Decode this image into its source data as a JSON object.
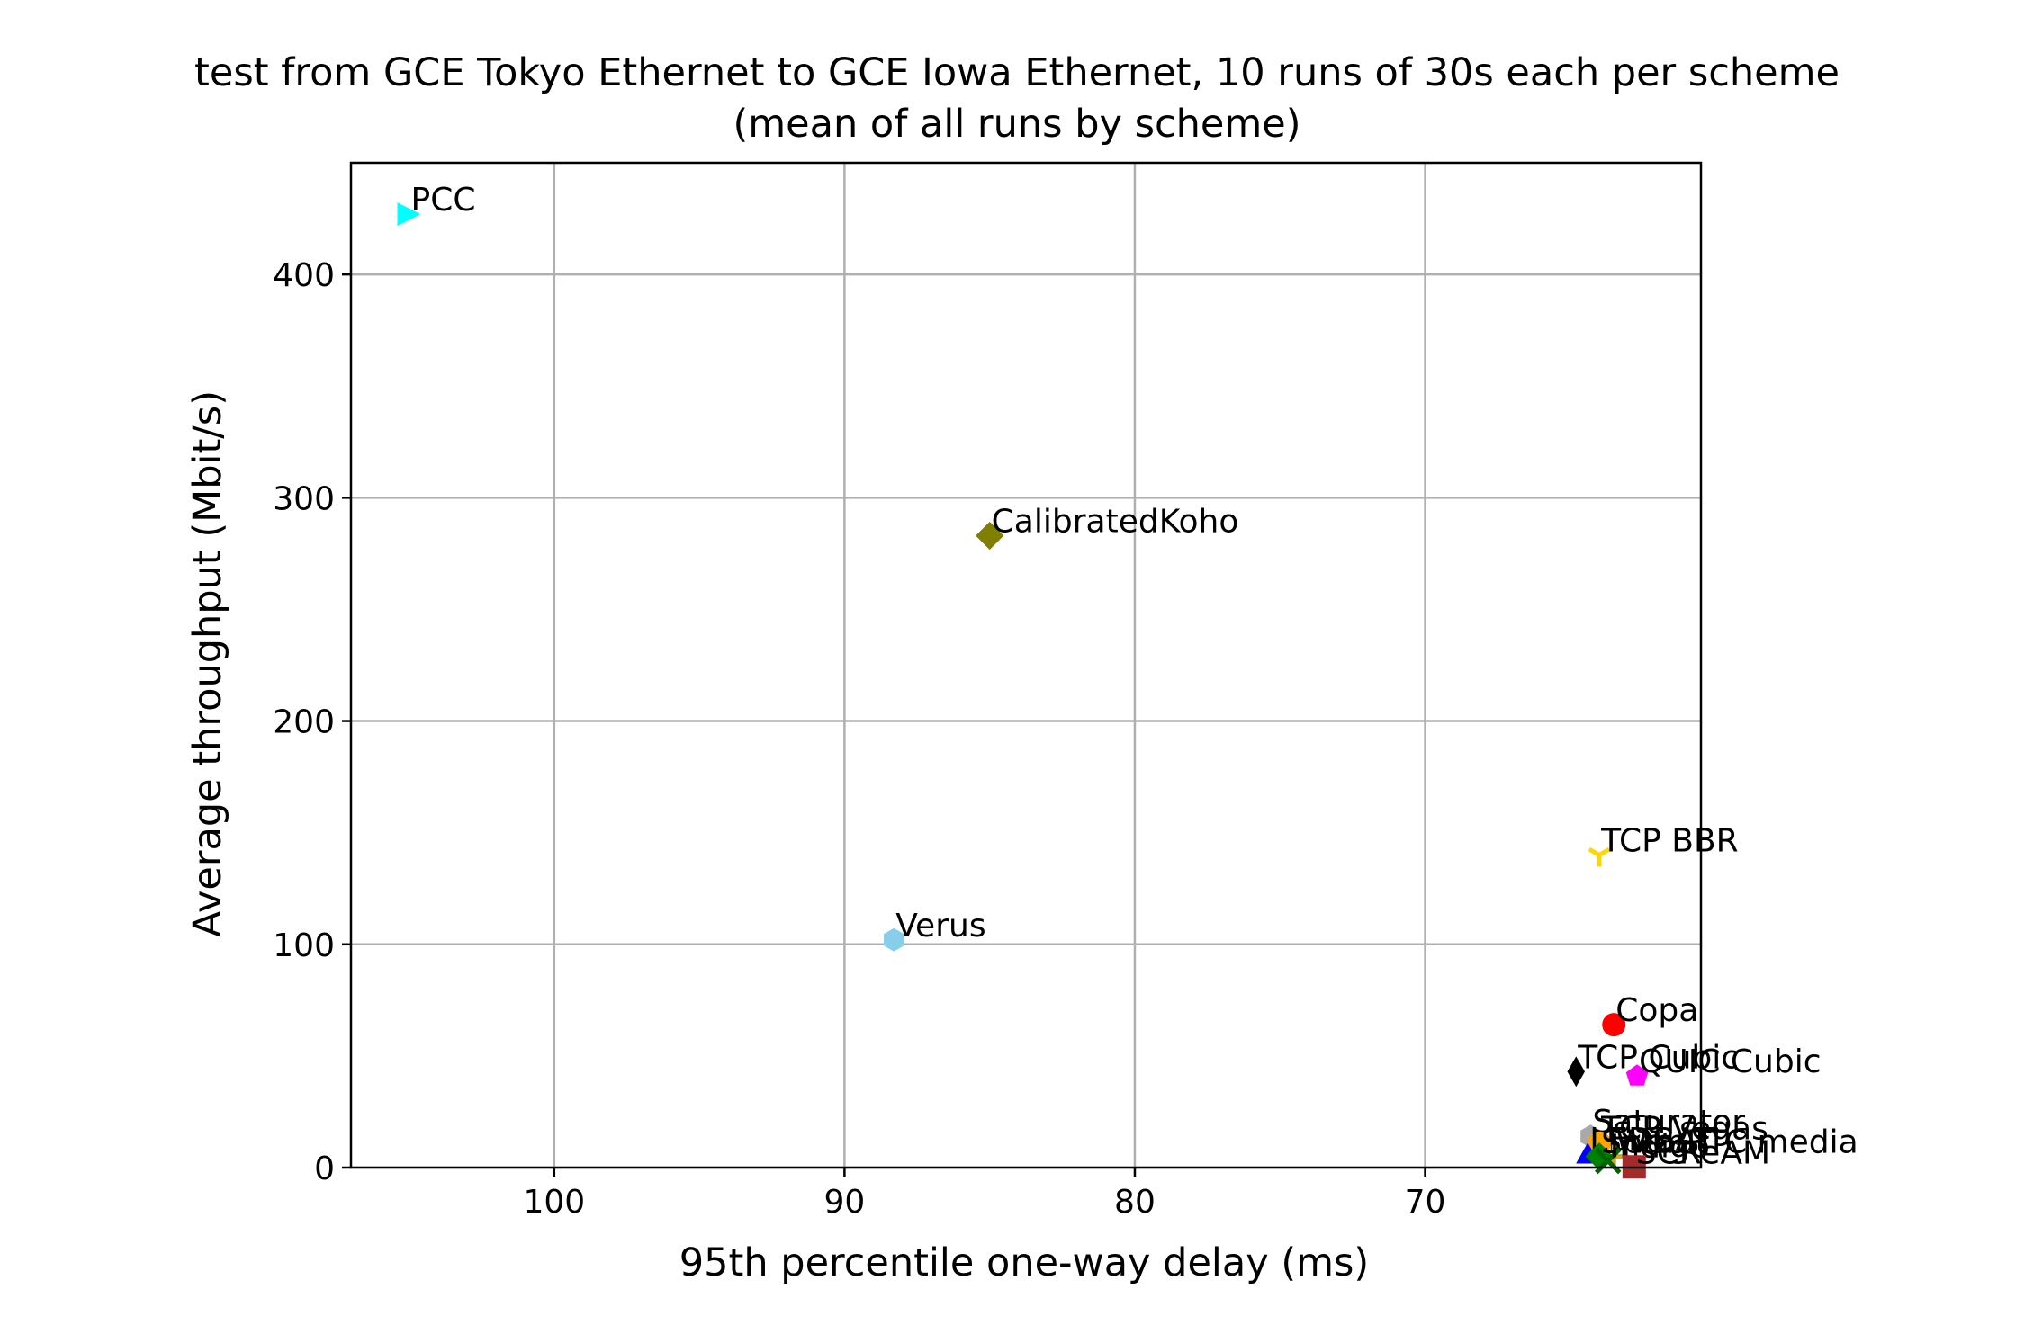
{
  "chart_data": {
    "type": "scatter",
    "title": "test from GCE Tokyo Ethernet to GCE Iowa Ethernet, 10 runs of 30s each per scheme",
    "subtitle": "(mean of all runs by scheme)",
    "xlabel": "95th percentile one-way delay (ms)",
    "ylabel": "Average throughput (Mbit/s)",
    "x_inverted": true,
    "xlim": [
      107,
      60.5
    ],
    "ylim": [
      0,
      450
    ],
    "xticks": [
      100,
      90,
      80,
      70
    ],
    "yticks": [
      0,
      100,
      200,
      300,
      400
    ],
    "grid": true,
    "points": [
      {
        "name": "PCC",
        "x": 105.0,
        "y": 427,
        "color": "#00ffff",
        "marker": "triangle-right"
      },
      {
        "name": "CalibratedKoho",
        "x": 85.0,
        "y": 283,
        "color": "#808000",
        "marker": "diamond"
      },
      {
        "name": "TCP BBR",
        "x": 64.0,
        "y": 140,
        "color": "#ffd700",
        "marker": "tri-down"
      },
      {
        "name": "Verus",
        "x": 88.3,
        "y": 102,
        "color": "#87ceeb",
        "marker": "hexagon"
      },
      {
        "name": "Copa",
        "x": 63.5,
        "y": 64,
        "color": "#ff0000",
        "marker": "circle"
      },
      {
        "name": "TCP Cubic",
        "x": 64.8,
        "y": 43,
        "color": "#000000",
        "marker": "thin-diamond"
      },
      {
        "name": "QUIC Cubic",
        "x": 62.7,
        "y": 41,
        "color": "#ff00ff",
        "marker": "pentagon"
      },
      {
        "name": "Saturator",
        "x": 64.3,
        "y": 14,
        "color": "#a9a9a9",
        "marker": "hexagon"
      },
      {
        "name": "TCP Vegas",
        "x": 64.0,
        "y": 11,
        "color": "#ffa500",
        "marker": "circle"
      },
      {
        "name": "LEDBAT",
        "x": 64.4,
        "y": 6,
        "color": "#0000ff",
        "marker": "triangle-up"
      },
      {
        "name": "WebRTC media",
        "x": 63.5,
        "y": 5,
        "color": "#daa520",
        "marker": "plus"
      },
      {
        "name": "Sprout",
        "x": 64.0,
        "y": 5,
        "color": "#008000",
        "marker": "diamond"
      },
      {
        "name": "Indigo",
        "x": 63.7,
        "y": 3,
        "color": "#006400",
        "marker": "x"
      },
      {
        "name": "SCReAM",
        "x": 62.8,
        "y": 0.3,
        "color": "#a52a2a",
        "marker": "square"
      }
    ]
  }
}
